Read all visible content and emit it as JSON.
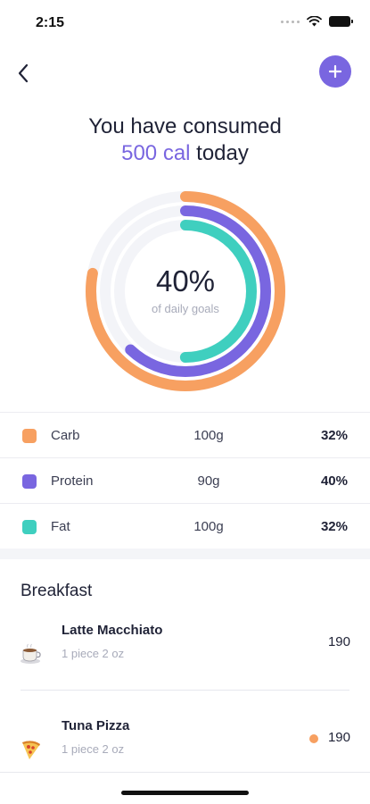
{
  "status_bar": {
    "time": "2:15"
  },
  "header": {
    "headline_line1": "You have consumed",
    "headline_accent": "500 cal",
    "headline_rest": " today"
  },
  "ring": {
    "percent_label": "40%",
    "caption": "of daily goals",
    "tracks": [
      {
        "name": "Carb",
        "color": "#f7a061",
        "fraction": 0.78
      },
      {
        "name": "Protein",
        "color": "#7966e0",
        "fraction": 0.62
      },
      {
        "name": "Fat",
        "color": "#3fcfbf",
        "fraction": 0.5
      }
    ]
  },
  "macros": [
    {
      "name": "Carb",
      "grams": "100g",
      "percent": "32%",
      "color": "#f7a061"
    },
    {
      "name": "Protein",
      "grams": "90g",
      "percent": "40%",
      "color": "#7966e0"
    },
    {
      "name": "Fat",
      "grams": "100g",
      "percent": "32%",
      "color": "#3fcfbf"
    }
  ],
  "meal": {
    "title": "Breakfast",
    "items": [
      {
        "name": "Latte Macchiato",
        "portion": "1 piece 2 oz",
        "calories": "190",
        "icon": "coffee-cup-icon"
      },
      {
        "name": "Tuna Pizza",
        "portion": "1 piece 2 oz",
        "calories": "190",
        "icon": "pizza-slice-icon"
      }
    ]
  },
  "colors": {
    "accent": "#7966e0",
    "carb": "#f7a061",
    "protein": "#7966e0",
    "fat": "#3fcfbf",
    "track": "#f3f4f8"
  }
}
